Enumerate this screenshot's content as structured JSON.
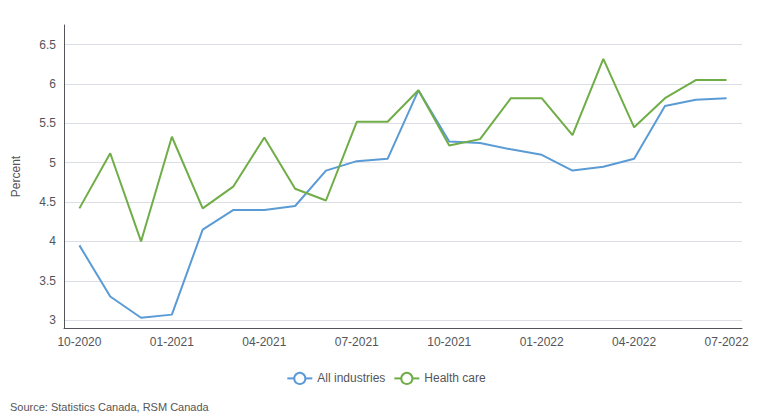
{
  "chart_data": {
    "type": "line",
    "ylabel": "Percent",
    "annotations": [
      "Source: Statistics Canada, RSM Canada"
    ],
    "categories": [
      "10-2020",
      null,
      null,
      "01-2021",
      null,
      null,
      "04-2021",
      null,
      null,
      "07-2021",
      null,
      null,
      "10-2021",
      null,
      null,
      "01-2022",
      null,
      null,
      "04-2022",
      null,
      null,
      "07-2022"
    ],
    "series": [
      {
        "name": "All industries",
        "color": "#5b9bd5",
        "values": [
          3.95,
          3.3,
          3.03,
          3.07,
          4.15,
          4.4,
          4.4,
          4.45,
          4.9,
          5.02,
          5.05,
          5.92,
          5.27,
          5.25,
          5.17,
          5.1,
          4.9,
          4.95,
          5.05,
          5.72,
          5.8,
          5.82
        ]
      },
      {
        "name": "Health care",
        "color": "#70ad47",
        "values": [
          4.42,
          5.12,
          4.0,
          5.33,
          4.42,
          4.7,
          5.32,
          4.67,
          4.52,
          5.52,
          5.52,
          5.92,
          5.22,
          5.3,
          5.82,
          5.82,
          5.35,
          6.32,
          5.45,
          5.82,
          6.05,
          6.05
        ]
      }
    ],
    "ylim": [
      2.9,
      6.75
    ],
    "yticks": [
      3,
      3.5,
      4,
      4.5,
      5,
      5.5,
      6,
      6.5
    ],
    "grid": true,
    "legend": "bottom"
  }
}
